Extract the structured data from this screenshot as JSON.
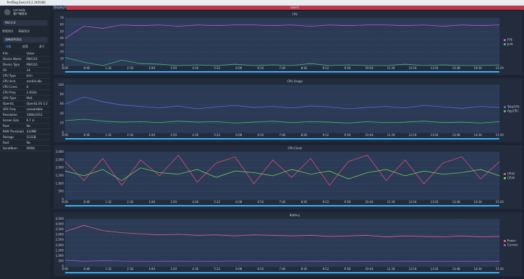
{
  "window_title": "PerfDog Exe(v10.2.240548)",
  "sidebar": {
    "user": "cat hello",
    "user_sub": "客户端版本",
    "device": "PBA110",
    "buttons": [
      "常规测试",
      "高级测试"
    ],
    "mode": "流畅帧率测试",
    "tabs": [
      "设备",
      "应用",
      "关于"
    ],
    "info_header": [
      "Info",
      "Value"
    ],
    "rows": [
      [
        "Device Name",
        "PBA110"
      ],
      [
        "Device Type",
        "PBA110"
      ],
      [
        "OS",
        "14"
      ],
      [
        "CPU Type",
        "kirin"
      ],
      [
        "CPU Arch",
        "arm64-v8a"
      ],
      [
        "CPU Cores",
        "8"
      ],
      [
        "CPU Freq",
        "2.4GHz"
      ],
      [
        "GPU Type",
        "Mali"
      ],
      [
        "OpenGL",
        "OpenGL ES 3.2"
      ],
      [
        "GPU Freq",
        "unavailable"
      ],
      [
        "Resolution",
        "1080x2412"
      ],
      [
        "Screen Size",
        "6.7 in"
      ],
      [
        "Root",
        "No"
      ],
      [
        "RAM Threshold",
        "432MB"
      ],
      [
        "Storage",
        "512GB"
      ],
      [
        "Root",
        "No"
      ],
      [
        "SerialNum",
        "9EMQ"
      ]
    ]
  },
  "tabs": {
    "display": "DisplayTab",
    "label": "label1"
  },
  "time_labels": [
    "0:00",
    "0:46",
    "1:32",
    "2:18",
    "3:04",
    "3:50",
    "4:36",
    "5:22",
    "6:08",
    "6:54",
    "7:40",
    "8:26",
    "9:12",
    "9:58",
    "10:44",
    "11:30",
    "12:16",
    "13:02",
    "13:48",
    "14:34",
    "15:20"
  ],
  "charts": [
    {
      "title": "FPS",
      "ylim": [
        0,
        70
      ],
      "yticks": [
        0,
        10,
        20,
        30,
        40,
        50,
        60,
        70
      ],
      "series": [
        {
          "name": "FPS",
          "color": "#d04fd8",
          "values": [
            40,
            58,
            55,
            60,
            59,
            60,
            58,
            60,
            59,
            60,
            60,
            59,
            60,
            58,
            60,
            59,
            60,
            60,
            59,
            60,
            58,
            60,
            59,
            60
          ]
        },
        {
          "name": "Jank",
          "color": "#3fbf6a",
          "values": [
            12,
            5,
            0,
            8,
            3,
            2,
            0,
            1,
            0,
            2,
            0,
            1,
            0,
            3,
            0,
            1,
            0,
            0,
            2,
            0,
            1,
            0,
            0,
            1
          ]
        }
      ]
    },
    {
      "title": "CPU Usage",
      "ylim": [
        0,
        100
      ],
      "yticks": [
        0,
        20,
        40,
        60,
        80,
        100
      ],
      "series": [
        {
          "name": "TotalCPU",
          "color": "#5b6fe0",
          "values": [
            60,
            75,
            65,
            58,
            55,
            52,
            56,
            50,
            54,
            57,
            53,
            55,
            52,
            56,
            54,
            50,
            53,
            55,
            52,
            57,
            54,
            51,
            55,
            53
          ]
        },
        {
          "name": "AppCPU",
          "color": "#3fbf6a",
          "values": [
            25,
            28,
            24,
            22,
            23,
            21,
            24,
            22,
            23,
            20,
            22,
            24,
            21,
            23,
            22,
            20,
            23,
            21,
            22,
            24,
            21,
            22,
            20,
            23
          ]
        }
      ]
    },
    {
      "title": "CPU Clock",
      "ylim": [
        0,
        3000
      ],
      "yticks": [
        0,
        500,
        {
          "value": 1000,
          "label": "1,000"
        },
        {
          "value": 1500,
          "label": "1,500"
        },
        {
          "value": 2000,
          "label": "2,000"
        },
        {
          "value": 2500,
          "label": "2,500"
        },
        {
          "value": 3000,
          "label": "3,000"
        }
      ],
      "series": [
        {
          "name": "CPU0",
          "color": "#e0507a",
          "values": [
            2400,
            1200,
            2600,
            900,
            2500,
            1500,
            2800,
            1100,
            2300,
            2700,
            1000,
            2500,
            1400,
            2600,
            900,
            2400,
            2800,
            1200,
            2500,
            1000,
            2300,
            2700,
            1300,
            2400
          ]
        },
        {
          "name": "CPU4",
          "color": "#6fcf5a",
          "values": [
            1800,
            1500,
            1900,
            1200,
            2000,
            1700,
            1600,
            1900,
            1400,
            1800,
            1700,
            1500,
            1900,
            1600,
            1800,
            1300,
            1700,
            1900,
            1500,
            1800,
            1600,
            1700,
            1900,
            1500
          ]
        }
      ]
    },
    {
      "title": "Battery",
      "ylim": [
        0,
        4500
      ],
      "yticks": [
        0,
        500,
        {
          "value": 1000,
          "label": "1,000"
        },
        {
          "value": 1500,
          "label": "1,500"
        },
        {
          "value": 2000,
          "label": "2,000"
        },
        {
          "value": 2500,
          "label": "2,500"
        },
        {
          "value": 3000,
          "label": "3,000"
        },
        {
          "value": 3500,
          "label": "3,500"
        },
        {
          "value": 4000,
          "label": "4,000"
        },
        {
          "value": 4500,
          "label": "4,500"
        }
      ],
      "series": [
        {
          "name": "Power",
          "color": "#e0607a",
          "values": [
            3300,
            3900,
            3400,
            3200,
            3100,
            3000,
            3050,
            2950,
            3000,
            2900,
            3000,
            2950,
            2900,
            2950,
            2850,
            2900,
            2950,
            2800,
            2900,
            2850,
            2800,
            2900,
            2800,
            2850
          ]
        },
        {
          "name": "Current",
          "color": "#a050d8",
          "values": [
            600,
            500,
            550,
            520,
            480,
            500,
            510,
            490,
            500,
            520,
            480,
            500,
            490,
            510,
            500,
            480,
            500,
            490,
            510,
            500,
            490,
            500,
            480,
            500
          ]
        }
      ]
    }
  ]
}
